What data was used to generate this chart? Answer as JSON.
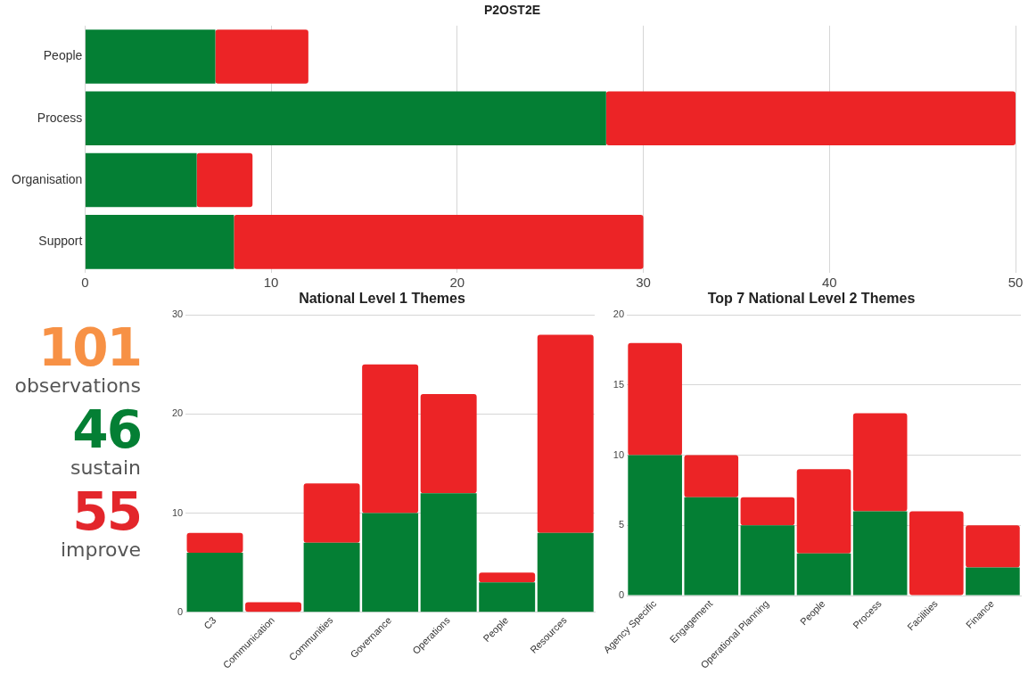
{
  "chart_data": [
    {
      "type": "bar",
      "title": "P2OST2E",
      "orientation": "horizontal",
      "stacked": true,
      "categories": [
        "People",
        "Process",
        "Organisation",
        "Support"
      ],
      "series": [
        {
          "color": "#047f34",
          "values": [
            7,
            28,
            6,
            8
          ]
        },
        {
          "color": "#ec2426",
          "values": [
            5,
            22,
            3,
            22
          ]
        }
      ],
      "xlim": [
        0,
        50
      ],
      "xticks": [
        0,
        10,
        20,
        30,
        40,
        50
      ],
      "grid": "x",
      "legend": false
    },
    {
      "type": "other",
      "annotations": [
        "101",
        "observations",
        "46",
        "sustain",
        "55",
        "improve"
      ],
      "colors": [
        "#f79145",
        "#555555",
        "#047f34",
        "#555555",
        "#e3262b",
        "#555555"
      ]
    },
    {
      "type": "bar",
      "title": "National Level 1 Themes",
      "stacked": true,
      "categories": [
        "C3",
        "Communication",
        "Communities",
        "Governance",
        "Operations",
        "People",
        "Resources"
      ],
      "series": [
        {
          "color": "#047f34",
          "values": [
            6,
            0,
            7,
            10,
            12,
            3,
            8
          ]
        },
        {
          "color": "#ec2426",
          "values": [
            2,
            1,
            6,
            15,
            10,
            1,
            20
          ]
        }
      ],
      "ylim": [
        0,
        30
      ],
      "yticks": [
        0,
        10,
        20,
        30
      ],
      "grid": "y",
      "legend": false
    },
    {
      "type": "bar",
      "title": "Top 7 National Level 2 Themes",
      "stacked": true,
      "categories": [
        "Agency Specific",
        "Engagement",
        "Operational Planning",
        "People",
        "Process",
        "Facilities",
        "Finance"
      ],
      "series": [
        {
          "color": "#047f34",
          "values": [
            10,
            7,
            5,
            3,
            6,
            0,
            2
          ]
        },
        {
          "color": "#ec2426",
          "values": [
            8,
            3,
            2,
            6,
            7,
            6,
            3
          ]
        }
      ],
      "ylim": [
        0,
        20
      ],
      "yticks": [
        0,
        5,
        10,
        15,
        20
      ],
      "grid": "y",
      "legend": false
    }
  ]
}
